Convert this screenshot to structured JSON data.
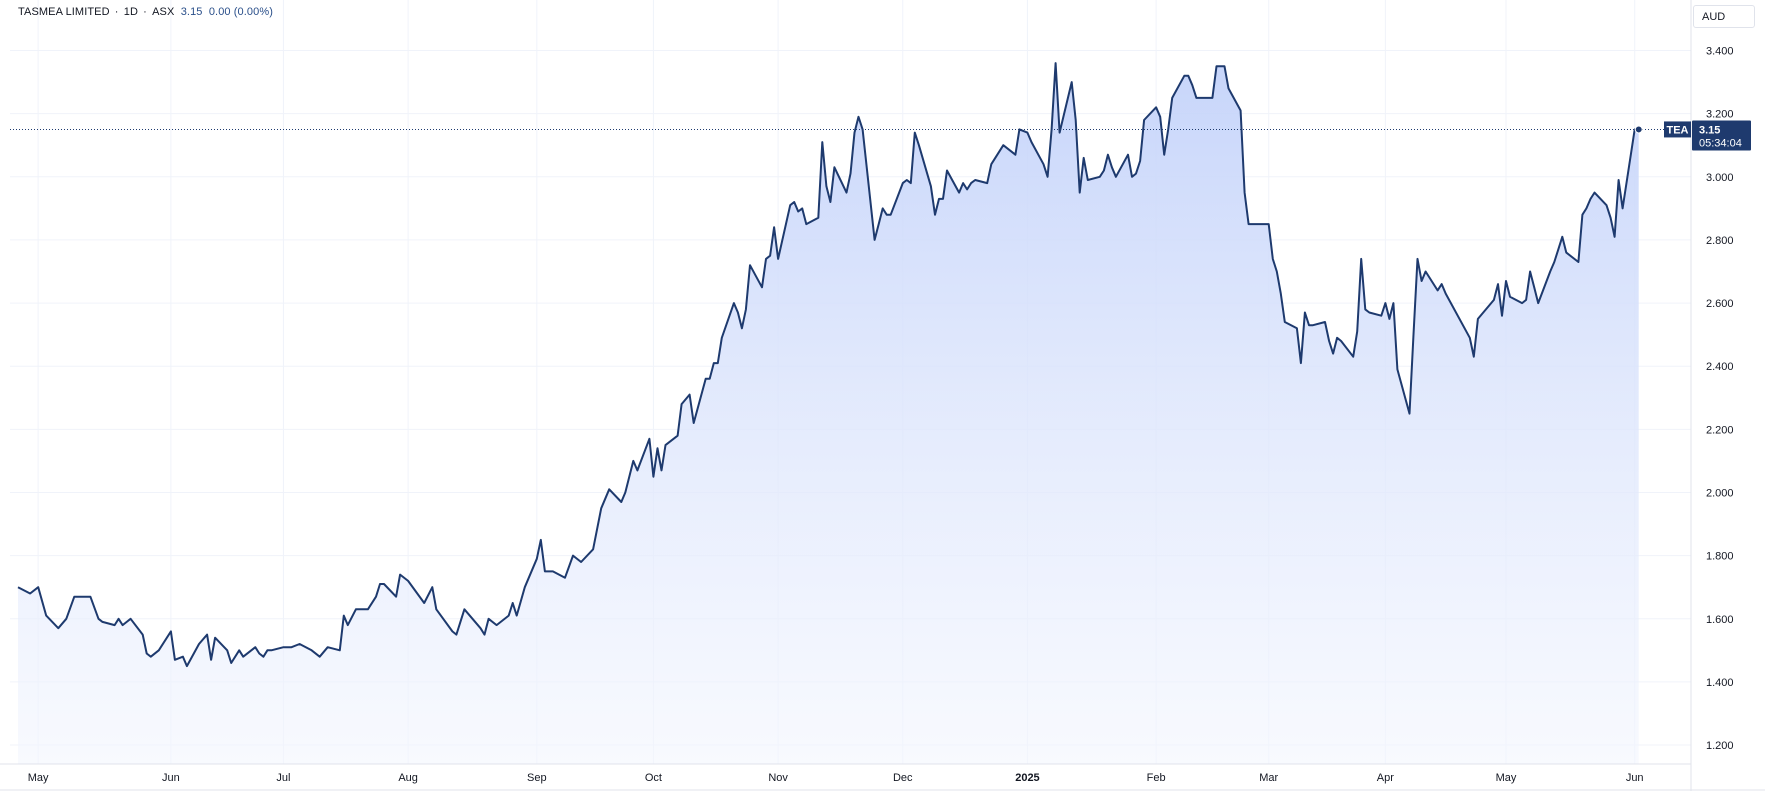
{
  "header": {
    "symbol": "TASMEA LIMITED",
    "interval": "1D",
    "exchange": "ASX",
    "last": "3.15",
    "change": "0.00",
    "change_pct": "(0.00%)"
  },
  "currency": "AUD",
  "price_tag": {
    "ticker": "TEA",
    "price": "3.15",
    "countdown": "05:34:04"
  },
  "colors": {
    "line": "#1e3a6e",
    "fill_top": "#c4d3fa",
    "fill_bottom": "#f3f6fe",
    "tag_bg": "#1e3a6e",
    "grid": "#f0f3fa"
  },
  "chart_data": {
    "type": "area",
    "title": "TASMEA LIMITED · 1D · ASX",
    "xlabel": "",
    "ylabel": "",
    "ylim": [
      1.14,
      3.56
    ],
    "grid": true,
    "y_ticks": [
      1.2,
      1.4,
      1.6,
      1.8,
      2.0,
      2.2,
      2.4,
      2.6,
      2.8,
      3.0,
      3.2,
      3.4
    ],
    "y_tick_labels": [
      "1.200",
      "1.400",
      "1.600",
      "1.800",
      "2.000",
      "2.200",
      "2.400",
      "2.600",
      "2.800",
      "3.000",
      "3.200",
      "3.400"
    ],
    "x_ticks": [
      {
        "label": "May",
        "date": "2024-05-01"
      },
      {
        "label": "Jun",
        "date": "2024-06-03"
      },
      {
        "label": "Jul",
        "date": "2024-07-01"
      },
      {
        "label": "Aug",
        "date": "2024-08-01"
      },
      {
        "label": "Sep",
        "date": "2024-09-02"
      },
      {
        "label": "Oct",
        "date": "2024-10-01"
      },
      {
        "label": "Nov",
        "date": "2024-11-01"
      },
      {
        "label": "Dec",
        "date": "2024-12-02"
      },
      {
        "label": "2025",
        "date": "2025-01-02",
        "bold": true
      },
      {
        "label": "Feb",
        "date": "2025-02-03"
      },
      {
        "label": "Mar",
        "date": "2025-03-03"
      },
      {
        "label": "Apr",
        "date": "2025-04-01"
      },
      {
        "label": "May",
        "date": "2025-05-01"
      },
      {
        "label": "Jun",
        "date": "2025-06-02"
      }
    ],
    "series": [
      {
        "name": "TEA",
        "points": [
          [
            "2024-04-26",
            1.7
          ],
          [
            "2024-04-29",
            1.68
          ],
          [
            "2024-05-01",
            1.7
          ],
          [
            "2024-05-03",
            1.61
          ],
          [
            "2024-05-06",
            1.57
          ],
          [
            "2024-05-08",
            1.6
          ],
          [
            "2024-05-10",
            1.67
          ],
          [
            "2024-05-14",
            1.67
          ],
          [
            "2024-05-16",
            1.6
          ],
          [
            "2024-05-17",
            1.59
          ],
          [
            "2024-05-20",
            1.58
          ],
          [
            "2024-05-21",
            1.6
          ],
          [
            "2024-05-22",
            1.58
          ],
          [
            "2024-05-24",
            1.6
          ],
          [
            "2024-05-27",
            1.55
          ],
          [
            "2024-05-28",
            1.49
          ],
          [
            "2024-05-29",
            1.48
          ],
          [
            "2024-05-31",
            1.5
          ],
          [
            "2024-06-03",
            1.56
          ],
          [
            "2024-06-04",
            1.47
          ],
          [
            "2024-06-06",
            1.48
          ],
          [
            "2024-06-07",
            1.45
          ],
          [
            "2024-06-10",
            1.52
          ],
          [
            "2024-06-12",
            1.55
          ],
          [
            "2024-06-13",
            1.47
          ],
          [
            "2024-06-14",
            1.54
          ],
          [
            "2024-06-17",
            1.5
          ],
          [
            "2024-06-18",
            1.46
          ],
          [
            "2024-06-20",
            1.5
          ],
          [
            "2024-06-21",
            1.48
          ],
          [
            "2024-06-24",
            1.51
          ],
          [
            "2024-06-25",
            1.49
          ],
          [
            "2024-06-26",
            1.48
          ],
          [
            "2024-06-27",
            1.5
          ],
          [
            "2024-06-28",
            1.5
          ],
          [
            "2024-07-01",
            1.51
          ],
          [
            "2024-07-03",
            1.51
          ],
          [
            "2024-07-05",
            1.52
          ],
          [
            "2024-07-08",
            1.5
          ],
          [
            "2024-07-10",
            1.48
          ],
          [
            "2024-07-12",
            1.51
          ],
          [
            "2024-07-15",
            1.5
          ],
          [
            "2024-07-16",
            1.61
          ],
          [
            "2024-07-17",
            1.58
          ],
          [
            "2024-07-19",
            1.63
          ],
          [
            "2024-07-22",
            1.63
          ],
          [
            "2024-07-24",
            1.67
          ],
          [
            "2024-07-25",
            1.71
          ],
          [
            "2024-07-26",
            1.71
          ],
          [
            "2024-07-29",
            1.67
          ],
          [
            "2024-07-30",
            1.74
          ],
          [
            "2024-08-01",
            1.72
          ],
          [
            "2024-08-05",
            1.65
          ],
          [
            "2024-08-07",
            1.7
          ],
          [
            "2024-08-08",
            1.63
          ],
          [
            "2024-08-12",
            1.56
          ],
          [
            "2024-08-13",
            1.55
          ],
          [
            "2024-08-15",
            1.63
          ],
          [
            "2024-08-19",
            1.57
          ],
          [
            "2024-08-20",
            1.55
          ],
          [
            "2024-08-21",
            1.6
          ],
          [
            "2024-08-23",
            1.58
          ],
          [
            "2024-08-26",
            1.61
          ],
          [
            "2024-08-27",
            1.65
          ],
          [
            "2024-08-28",
            1.61
          ],
          [
            "2024-08-30",
            1.7
          ],
          [
            "2024-09-02",
            1.79
          ],
          [
            "2024-09-03",
            1.85
          ],
          [
            "2024-09-04",
            1.75
          ],
          [
            "2024-09-06",
            1.75
          ],
          [
            "2024-09-09",
            1.73
          ],
          [
            "2024-09-11",
            1.8
          ],
          [
            "2024-09-13",
            1.78
          ],
          [
            "2024-09-16",
            1.82
          ],
          [
            "2024-09-18",
            1.95
          ],
          [
            "2024-09-19",
            1.98
          ],
          [
            "2024-09-20",
            2.01
          ],
          [
            "2024-09-23",
            1.97
          ],
          [
            "2024-09-24",
            2.0
          ],
          [
            "2024-09-26",
            2.1
          ],
          [
            "2024-09-27",
            2.07
          ],
          [
            "2024-09-30",
            2.17
          ],
          [
            "2024-10-01",
            2.05
          ],
          [
            "2024-10-02",
            2.14
          ],
          [
            "2024-10-03",
            2.07
          ],
          [
            "2024-10-04",
            2.15
          ],
          [
            "2024-10-07",
            2.18
          ],
          [
            "2024-10-08",
            2.28
          ],
          [
            "2024-10-10",
            2.31
          ],
          [
            "2024-10-11",
            2.22
          ],
          [
            "2024-10-14",
            2.36
          ],
          [
            "2024-10-15",
            2.36
          ],
          [
            "2024-10-16",
            2.41
          ],
          [
            "2024-10-17",
            2.41
          ],
          [
            "2024-10-18",
            2.49
          ],
          [
            "2024-10-21",
            2.6
          ],
          [
            "2024-10-22",
            2.57
          ],
          [
            "2024-10-23",
            2.52
          ],
          [
            "2024-10-24",
            2.58
          ],
          [
            "2024-10-25",
            2.72
          ],
          [
            "2024-10-28",
            2.65
          ],
          [
            "2024-10-29",
            2.74
          ],
          [
            "2024-10-30",
            2.75
          ],
          [
            "2024-10-31",
            2.84
          ],
          [
            "2024-11-01",
            2.74
          ],
          [
            "2024-11-04",
            2.91
          ],
          [
            "2024-11-05",
            2.92
          ],
          [
            "2024-11-06",
            2.89
          ],
          [
            "2024-11-07",
            2.9
          ],
          [
            "2024-11-08",
            2.85
          ],
          [
            "2024-11-11",
            2.87
          ],
          [
            "2024-11-12",
            3.11
          ],
          [
            "2024-11-13",
            2.97
          ],
          [
            "2024-11-14",
            2.92
          ],
          [
            "2024-11-15",
            3.03
          ],
          [
            "2024-11-18",
            2.95
          ],
          [
            "2024-11-19",
            3.01
          ],
          [
            "2024-11-20",
            3.14
          ],
          [
            "2024-11-21",
            3.19
          ],
          [
            "2024-11-22",
            3.15
          ],
          [
            "2024-11-25",
            2.8
          ],
          [
            "2024-11-26",
            2.85
          ],
          [
            "2024-11-27",
            2.9
          ],
          [
            "2024-11-28",
            2.88
          ],
          [
            "2024-11-29",
            2.88
          ],
          [
            "2024-12-02",
            2.98
          ],
          [
            "2024-12-03",
            2.99
          ],
          [
            "2024-12-04",
            2.98
          ],
          [
            "2024-12-05",
            3.14
          ],
          [
            "2024-12-06",
            3.1
          ],
          [
            "2024-12-09",
            2.97
          ],
          [
            "2024-12-10",
            2.88
          ],
          [
            "2024-12-11",
            2.93
          ],
          [
            "2024-12-12",
            2.93
          ],
          [
            "2024-12-13",
            3.02
          ],
          [
            "2024-12-16",
            2.95
          ],
          [
            "2024-12-17",
            2.98
          ],
          [
            "2024-12-18",
            2.96
          ],
          [
            "2024-12-19",
            2.98
          ],
          [
            "2024-12-20",
            2.99
          ],
          [
            "2024-12-23",
            2.98
          ],
          [
            "2024-12-24",
            3.04
          ],
          [
            "2024-12-27",
            3.1
          ],
          [
            "2024-12-30",
            3.07
          ],
          [
            "2024-12-31",
            3.15
          ],
          [
            "2025-01-02",
            3.14
          ],
          [
            "2025-01-03",
            3.11
          ],
          [
            "2025-01-06",
            3.04
          ],
          [
            "2025-01-07",
            3.0
          ],
          [
            "2025-01-08",
            3.15
          ],
          [
            "2025-01-09",
            3.36
          ],
          [
            "2025-01-10",
            3.14
          ],
          [
            "2025-01-13",
            3.3
          ],
          [
            "2025-01-14",
            3.18
          ],
          [
            "2025-01-15",
            2.95
          ],
          [
            "2025-01-16",
            3.06
          ],
          [
            "2025-01-17",
            2.99
          ],
          [
            "2025-01-20",
            3.0
          ],
          [
            "2025-01-21",
            3.02
          ],
          [
            "2025-01-22",
            3.07
          ],
          [
            "2025-01-23",
            3.03
          ],
          [
            "2025-01-24",
            3.0
          ],
          [
            "2025-01-27",
            3.07
          ],
          [
            "2025-01-28",
            3.0
          ],
          [
            "2025-01-29",
            3.01
          ],
          [
            "2025-01-30",
            3.05
          ],
          [
            "2025-01-31",
            3.18
          ],
          [
            "2025-02-03",
            3.22
          ],
          [
            "2025-02-04",
            3.19
          ],
          [
            "2025-02-05",
            3.07
          ],
          [
            "2025-02-06",
            3.15
          ],
          [
            "2025-02-07",
            3.25
          ],
          [
            "2025-02-10",
            3.32
          ],
          [
            "2025-02-11",
            3.32
          ],
          [
            "2025-02-12",
            3.29
          ],
          [
            "2025-02-13",
            3.25
          ],
          [
            "2025-02-17",
            3.25
          ],
          [
            "2025-02-18",
            3.35
          ],
          [
            "2025-02-20",
            3.35
          ],
          [
            "2025-02-21",
            3.28
          ],
          [
            "2025-02-24",
            3.21
          ],
          [
            "2025-02-25",
            2.95
          ],
          [
            "2025-02-26",
            2.85
          ],
          [
            "2025-03-03",
            2.85
          ],
          [
            "2025-03-04",
            2.74
          ],
          [
            "2025-03-05",
            2.7
          ],
          [
            "2025-03-06",
            2.63
          ],
          [
            "2025-03-07",
            2.54
          ],
          [
            "2025-03-10",
            2.52
          ],
          [
            "2025-03-11",
            2.41
          ],
          [
            "2025-03-12",
            2.57
          ],
          [
            "2025-03-13",
            2.53
          ],
          [
            "2025-03-14",
            2.53
          ],
          [
            "2025-03-17",
            2.54
          ],
          [
            "2025-03-18",
            2.48
          ],
          [
            "2025-03-19",
            2.44
          ],
          [
            "2025-03-20",
            2.49
          ],
          [
            "2025-03-21",
            2.48
          ],
          [
            "2025-03-24",
            2.43
          ],
          [
            "2025-03-25",
            2.51
          ],
          [
            "2025-03-26",
            2.74
          ],
          [
            "2025-03-27",
            2.58
          ],
          [
            "2025-03-28",
            2.57
          ],
          [
            "2025-03-31",
            2.56
          ],
          [
            "2025-04-01",
            2.6
          ],
          [
            "2025-04-02",
            2.55
          ],
          [
            "2025-04-03",
            2.6
          ],
          [
            "2025-04-04",
            2.39
          ],
          [
            "2025-04-07",
            2.25
          ],
          [
            "2025-04-08",
            2.5
          ],
          [
            "2025-04-09",
            2.74
          ],
          [
            "2025-04-10",
            2.67
          ],
          [
            "2025-04-11",
            2.7
          ],
          [
            "2025-04-14",
            2.64
          ],
          [
            "2025-04-15",
            2.66
          ],
          [
            "2025-04-16",
            2.63
          ],
          [
            "2025-04-22",
            2.49
          ],
          [
            "2025-04-23",
            2.43
          ],
          [
            "2025-04-24",
            2.55
          ],
          [
            "2025-04-28",
            2.61
          ],
          [
            "2025-04-29",
            2.66
          ],
          [
            "2025-04-30",
            2.56
          ],
          [
            "2025-05-01",
            2.67
          ],
          [
            "2025-05-02",
            2.62
          ],
          [
            "2025-05-05",
            2.6
          ],
          [
            "2025-05-06",
            2.61
          ],
          [
            "2025-05-07",
            2.7
          ],
          [
            "2025-05-08",
            2.65
          ],
          [
            "2025-05-09",
            2.6
          ],
          [
            "2025-05-12",
            2.7
          ],
          [
            "2025-05-13",
            2.73
          ],
          [
            "2025-05-14",
            2.77
          ],
          [
            "2025-05-15",
            2.81
          ],
          [
            "2025-05-16",
            2.76
          ],
          [
            "2025-05-19",
            2.73
          ],
          [
            "2025-05-20",
            2.88
          ],
          [
            "2025-05-21",
            2.9
          ],
          [
            "2025-05-22",
            2.93
          ],
          [
            "2025-05-23",
            2.95
          ],
          [
            "2025-05-26",
            2.91
          ],
          [
            "2025-05-27",
            2.87
          ],
          [
            "2025-05-28",
            2.81
          ],
          [
            "2025-05-29",
            2.99
          ],
          [
            "2025-05-30",
            2.9
          ],
          [
            "2025-06-02",
            3.15
          ],
          [
            "2025-06-03",
            3.15
          ]
        ]
      }
    ]
  }
}
